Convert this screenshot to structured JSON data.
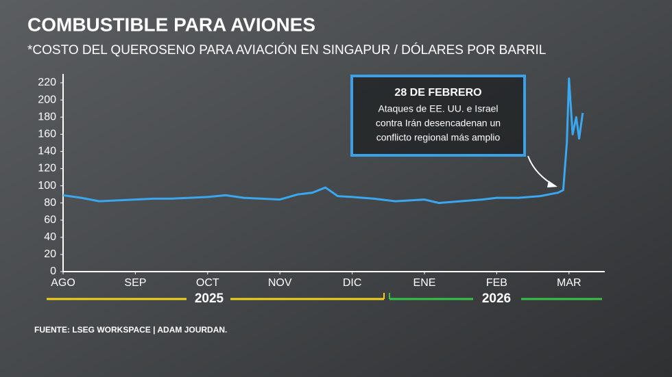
{
  "chart_data": {
    "type": "line",
    "title": "COMBUSTIBLE PARA AVIONES",
    "subtitle": "*COSTO DEL QUEROSENO PARA AVIACIÓN EN SINGAPUR / DÓLARES POR BARRIL",
    "source": "FUENTE: LSEG WORKSPACE | ADAM JOURDAN.",
    "annotation": {
      "title": "28 DE FEBRERO",
      "lines": [
        "Ataques de EE. UU. e Israel",
        "contra Irán desencadenan un",
        "conflicto regional más amplio"
      ]
    },
    "years": [
      {
        "label": "2025",
        "color": "#f2d21b"
      },
      {
        "label": "2026",
        "color": "#39c24a"
      }
    ],
    "x": [
      0,
      0.25,
      0.5,
      0.75,
      1.0,
      1.25,
      1.5,
      1.75,
      2.0,
      2.25,
      2.5,
      2.75,
      3.0,
      3.25,
      3.45,
      3.63,
      3.8,
      4.0,
      4.3,
      4.6,
      5.0,
      5.2,
      5.5,
      5.8,
      6.0,
      6.3,
      6.6,
      6.85,
      6.92,
      6.97,
      7.0,
      7.05,
      7.1,
      7.14,
      7.19
    ],
    "series": [
      {
        "name": "Queroseno",
        "color": "#3aa8f0",
        "values": [
          89,
          86,
          82,
          83,
          84,
          85,
          85,
          86,
          87,
          89,
          86,
          85,
          84,
          90,
          92,
          98,
          88,
          87,
          85,
          82,
          84,
          80,
          82,
          84,
          86,
          86,
          88,
          92,
          95,
          150,
          225,
          160,
          180,
          155,
          185
        ]
      }
    ],
    "xlim": [
      0,
      7.5
    ],
    "xticks": [
      {
        "value": 0,
        "label": "AGO"
      },
      {
        "value": 1,
        "label": "SEP"
      },
      {
        "value": 2,
        "label": "OCT"
      },
      {
        "value": 3,
        "label": "NOV"
      },
      {
        "value": 4,
        "label": "DIC"
      },
      {
        "value": 5,
        "label": "ENE"
      },
      {
        "value": 6,
        "label": "FEB"
      },
      {
        "value": 7,
        "label": "MAR"
      }
    ],
    "ylim": [
      0,
      220
    ],
    "yticks": [
      0,
      20,
      40,
      60,
      80,
      100,
      120,
      140,
      160,
      180,
      200,
      220
    ],
    "grid": false
  }
}
